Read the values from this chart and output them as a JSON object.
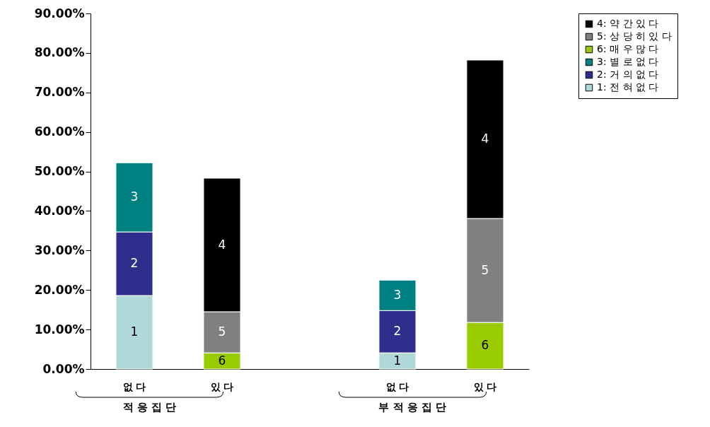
{
  "chart_data": {
    "type": "bar",
    "stacked": true,
    "categories": [
      "없 다",
      "있 다",
      null,
      "없 다",
      "있 다"
    ],
    "ylim": [
      0,
      90
    ],
    "yticks": [
      {
        "value": 0,
        "label": "0.00%"
      },
      {
        "value": 10,
        "label": "10.00%"
      },
      {
        "value": 20,
        "label": "20.00%"
      },
      {
        "value": 30,
        "label": "30.00%"
      },
      {
        "value": 40,
        "label": "40.00%"
      },
      {
        "value": 50,
        "label": "50.00%"
      },
      {
        "value": 60,
        "label": "60.00%"
      },
      {
        "value": 70,
        "label": "70.00%"
      },
      {
        "value": 80,
        "label": "80.00%"
      },
      {
        "value": 90,
        "label": "90.00%"
      }
    ],
    "grid": false,
    "legend": "top right",
    "annotations": [
      "적 응 집 단",
      "부 적 응 집 단",
      "1",
      "2",
      "3",
      "6",
      "5",
      "4",
      "1",
      "2",
      "3",
      "6",
      "5",
      "4"
    ],
    "series": [
      {
        "name": "1: 전 혀 없 다",
        "color": "#b0d8d8",
        "values": [
          18.6,
          null,
          null,
          4.1,
          null
        ]
      },
      {
        "name": "2: 거 의 없 다",
        "color": "#2e2e8c",
        "values": [
          16.1,
          null,
          null,
          10.7,
          null
        ]
      },
      {
        "name": "3: 별 로 없 다",
        "color": "#008080",
        "values": [
          17.5,
          null,
          null,
          7.7,
          null
        ]
      },
      {
        "name": "6: 매 우 많 다",
        "color": "#99cc00",
        "values": [
          null,
          4.1,
          null,
          null,
          11.8
        ]
      },
      {
        "name": "5: 상 당 히 있 다",
        "color": "#808080",
        "values": [
          null,
          10.4,
          null,
          null,
          26.3
        ]
      },
      {
        "name": "4: 약 간 있 다",
        "color": "#000000",
        "values": [
          null,
          33.8,
          null,
          null,
          40.1
        ]
      }
    ]
  }
}
